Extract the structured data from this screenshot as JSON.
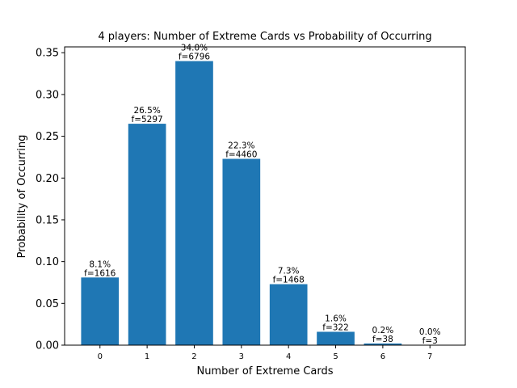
{
  "chart_data": {
    "type": "bar",
    "title": "4 players: Number of Extreme Cards vs Probability of Occurring",
    "xlabel": "Number of Extreme Cards",
    "ylabel": "Probability of Occurring",
    "categories": [
      "0",
      "1",
      "2",
      "3",
      "4",
      "5",
      "6",
      "7"
    ],
    "values": [
      0.081,
      0.265,
      0.34,
      0.223,
      0.073,
      0.016,
      0.002,
      0.0
    ],
    "percent_labels": [
      "8.1%",
      "26.5%",
      "34.0%",
      "22.3%",
      "7.3%",
      "1.6%",
      "0.2%",
      "0.0%"
    ],
    "freq_labels": [
      "f=1616",
      "f=5297",
      "f=6796",
      "f=4460",
      "f=1468",
      "f=322",
      "f=38",
      "f=3"
    ],
    "yticks": [
      "0.00",
      "0.05",
      "0.10",
      "0.15",
      "0.20",
      "0.25",
      "0.30",
      "0.35"
    ],
    "ylim": [
      0,
      0.357
    ],
    "grid": false,
    "bar_color": "#1f77b4"
  }
}
